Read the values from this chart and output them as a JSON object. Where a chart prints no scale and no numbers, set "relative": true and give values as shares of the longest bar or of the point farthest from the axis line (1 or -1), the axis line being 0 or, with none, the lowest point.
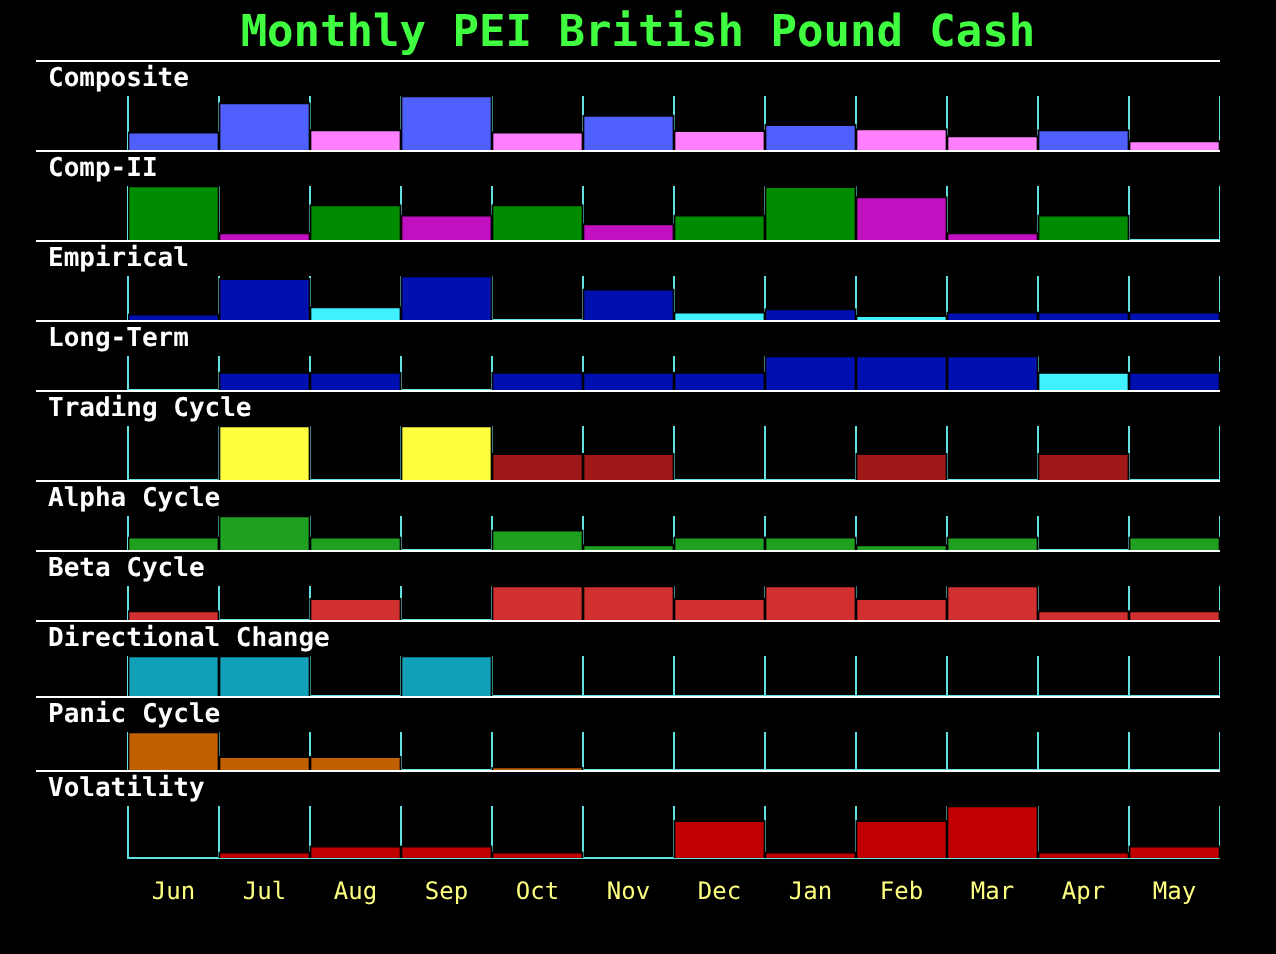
{
  "chart_data": [
    {
      "type": "bar",
      "title": "Monthly PEI British Pound Cash",
      "subtitle": "Composite",
      "relative": true,
      "grid": "x",
      "tick_labels": false,
      "categories": [
        null,
        null,
        null,
        null,
        null,
        null,
        null,
        null,
        null,
        null,
        null,
        null
      ],
      "values": [
        0.33,
        0.87,
        0.37,
        1,
        0.33,
        0.64,
        0.36,
        0.47,
        0.39,
        0.26,
        0.37,
        0.17
      ],
      "colors": [
        "#5060ff",
        "#5060ff",
        "#ff80ff",
        "#5060ff",
        "#ff80ff",
        "#5060ff",
        "#ff80ff",
        "#5060ff",
        "#ff80ff",
        "#ff80ff",
        "#5060ff",
        "#ff80ff"
      ]
    },
    {
      "type": "bar",
      "subtitle": "Comp-II",
      "relative": true,
      "grid": "x",
      "tick_labels": false,
      "categories": [
        null,
        null,
        null,
        null,
        null,
        null,
        null,
        null,
        null,
        null,
        null,
        null
      ],
      "values": [
        1,
        0.13,
        0.65,
        0.46,
        0.65,
        0.3,
        0.46,
        0.99,
        0.8,
        0.13,
        0.46,
        0
      ],
      "colors": [
        "#008c00",
        "#c010c0",
        "#008c00",
        "#c010c0",
        "#008c00",
        "#c010c0",
        "#008c00",
        "#008c00",
        "#c010c0",
        "#c010c0",
        "#008c00",
        "#008c00"
      ]
    },
    {
      "type": "bar",
      "subtitle": "Empirical",
      "relative": true,
      "grid": "x",
      "tick_labels": false,
      "categories": [
        null,
        null,
        null,
        null,
        null,
        null,
        null,
        null,
        null,
        null,
        null,
        null
      ],
      "values": [
        0.13,
        0.94,
        0.3,
        1,
        0,
        0.7,
        0.18,
        0.25,
        0.1,
        0.18,
        0.18,
        0.18
      ],
      "colors": [
        "#0010b0",
        "#0010b0",
        "#40f0ff",
        "#0010b0",
        "#0010b0",
        "#0010b0",
        "#40f0ff",
        "#0010b0",
        "#40f0ff",
        "#0010b0",
        "#0010b0",
        "#0010b0"
      ]
    },
    {
      "type": "bar",
      "subtitle": "Long-Term",
      "relative": true,
      "grid": "x",
      "tick_labels": false,
      "categories": [
        null,
        null,
        null,
        null,
        null,
        null,
        null,
        null,
        null,
        null,
        null,
        null
      ],
      "values": [
        0,
        0.52,
        0.52,
        0,
        0.52,
        0.52,
        0.52,
        1,
        1,
        1,
        0.52,
        0.52
      ],
      "colors": [
        "#0010b0",
        "#0010b0",
        "#0010b0",
        "#0010b0",
        "#0010b0",
        "#0010b0",
        "#0010b0",
        "#0010b0",
        "#0010b0",
        "#0010b0",
        "#40f0ff",
        "#0010b0"
      ]
    },
    {
      "type": "bar",
      "subtitle": "Trading Cycle",
      "relative": true,
      "grid": "x",
      "tick_labels": false,
      "categories": [
        null,
        null,
        null,
        null,
        null,
        null,
        null,
        null,
        null,
        null,
        null,
        null
      ],
      "values": [
        0,
        1,
        0,
        1,
        0.49,
        0.49,
        0,
        0,
        0.49,
        0,
        0.49,
        0
      ],
      "colors": [
        "#ffff40",
        "#ffff40",
        "#ffff40",
        "#ffff40",
        "#a01818",
        "#a01818",
        "#a01818",
        "#a01818",
        "#a01818",
        "#a01818",
        "#a01818",
        "#a01818"
      ]
    },
    {
      "type": "bar",
      "subtitle": "Alpha Cycle",
      "relative": true,
      "grid": "x",
      "tick_labels": false,
      "categories": [
        null,
        null,
        null,
        null,
        null,
        null,
        null,
        null,
        null,
        null,
        null,
        null
      ],
      "values": [
        0.38,
        1,
        0.38,
        0,
        0.58,
        0.15,
        0.38,
        0.38,
        0.15,
        0.38,
        0,
        0.38
      ],
      "color": "#20a020"
    },
    {
      "type": "bar",
      "subtitle": "Beta Cycle",
      "relative": true,
      "grid": "x",
      "tick_labels": false,
      "categories": [
        null,
        null,
        null,
        null,
        null,
        null,
        null,
        null,
        null,
        null,
        null,
        null
      ],
      "values": [
        0.27,
        0,
        0.63,
        0,
        1,
        1,
        0.63,
        1,
        0.63,
        1,
        0.27,
        0.27
      ],
      "color": "#d03030"
    },
    {
      "type": "bar",
      "subtitle": "Directional Change",
      "relative": true,
      "grid": "x",
      "tick_labels": false,
      "categories": [
        null,
        null,
        null,
        null,
        null,
        null,
        null,
        null,
        null,
        null,
        null,
        null
      ],
      "values": [
        1,
        1,
        0,
        1,
        0,
        0,
        0,
        0,
        0,
        0,
        0,
        0
      ],
      "color": "#10a0b8"
    },
    {
      "type": "bar",
      "subtitle": "Panic Cycle",
      "relative": true,
      "grid": "x",
      "tick_labels": false,
      "categories": [
        null,
        null,
        null,
        null,
        null,
        null,
        null,
        null,
        null,
        null,
        null,
        null
      ],
      "values": [
        1,
        0.35,
        0.35,
        0,
        0.06,
        0,
        0,
        0,
        0,
        0,
        0,
        0
      ],
      "color": "#c06000"
    },
    {
      "type": "bar",
      "subtitle": "Volatility",
      "relative": true,
      "grid": "x",
      "tick_labels": "x",
      "categories": [
        "Jun",
        "Jul",
        "Aug",
        "Sep",
        "Oct",
        "Nov",
        "Dec",
        "Jan",
        "Feb",
        "Mar",
        "Apr",
        "May"
      ],
      "values": [
        0,
        0.11,
        0.23,
        0.23,
        0.11,
        0,
        0.72,
        0.11,
        0.72,
        1,
        0.11,
        0.23
      ],
      "color": "#c00000"
    }
  ]
}
